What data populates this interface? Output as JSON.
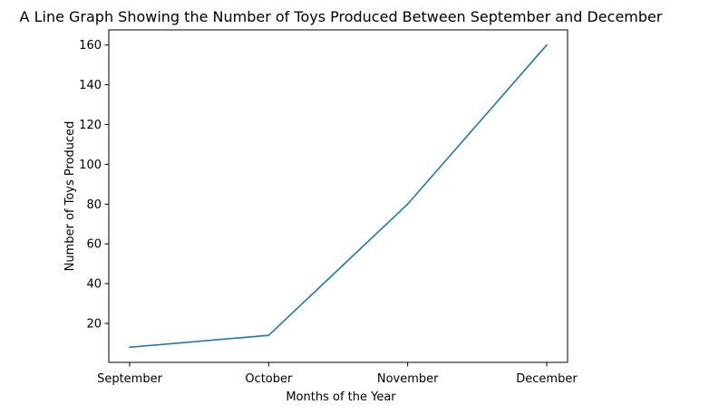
{
  "chart_data": {
    "type": "line",
    "title": "A Line Graph Showing the Number of Toys Produced Between September and December",
    "xlabel": "Months of the Year",
    "ylabel": "Number of Toys Produced",
    "categories": [
      "September",
      "October",
      "November",
      "December"
    ],
    "series": [
      {
        "values": [
          8,
          14,
          80,
          160
        ],
        "color": "#1f77b4"
      }
    ],
    "ylim": [
      0.4,
      167.6
    ],
    "yticks": [
      20,
      40,
      60,
      80,
      100,
      120,
      140,
      160
    ],
    "grid": false,
    "legend": "none"
  }
}
